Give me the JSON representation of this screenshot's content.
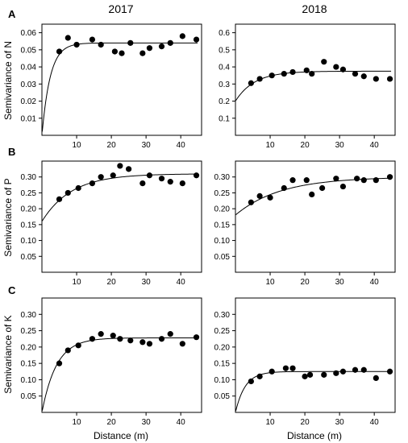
{
  "figure": {
    "column_titles": [
      "2017",
      "2018"
    ],
    "panel_letters": [
      "A",
      "B",
      "C"
    ],
    "row_ylabels": [
      "Semivariance of N",
      "Semivariance of P",
      "Semivariance of K"
    ],
    "xlabel": "Distance (m)"
  },
  "chart_data": [
    {
      "type": "scatter",
      "panel": "A",
      "year": "2017",
      "nutrient": "N",
      "xlim": [
        0,
        46
      ],
      "ylim": [
        0,
        0.065
      ],
      "xticks": [
        10,
        20,
        30,
        40
      ],
      "yticks": [
        0.01,
        0.02,
        0.03,
        0.04,
        0.05,
        0.06
      ],
      "ytick_labels": [
        "0.01",
        "0.02",
        "0.03",
        "0.04",
        "0.05",
        "0.06"
      ],
      "fit": {
        "nugget": 0.0,
        "sill": 0.054,
        "range": 2.4
      },
      "x": [
        5,
        7.5,
        10,
        14.5,
        17,
        21,
        23,
        25.5,
        29,
        31,
        34.5,
        37,
        40.5,
        44.5
      ],
      "y": [
        0.049,
        0.057,
        0.053,
        0.056,
        0.053,
        0.049,
        0.048,
        0.054,
        0.048,
        0.051,
        0.052,
        0.054,
        0.058,
        0.056
      ]
    },
    {
      "type": "scatter",
      "panel": "A",
      "year": "2018",
      "nutrient": "N",
      "xlim": [
        0,
        46
      ],
      "ylim": [
        0,
        0.65
      ],
      "xticks": [
        10,
        20,
        30,
        40
      ],
      "yticks": [
        0.1,
        0.2,
        0.3,
        0.4,
        0.5,
        0.6
      ],
      "ytick_labels": [
        "0.1",
        "0.2",
        "0.3",
        "0.4",
        "0.5",
        "0.6"
      ],
      "fit": {
        "nugget": 0.2,
        "sill": 0.375,
        "range": 5.5
      },
      "x": [
        4.5,
        7,
        10.5,
        14,
        16.5,
        20.5,
        22,
        25.5,
        29,
        31,
        34.5,
        37,
        40.5,
        44.5
      ],
      "y": [
        0.305,
        0.33,
        0.35,
        0.36,
        0.37,
        0.38,
        0.36,
        0.43,
        0.4,
        0.385,
        0.36,
        0.345,
        0.33,
        0.33
      ]
    },
    {
      "type": "scatter",
      "panel": "B",
      "year": "2017",
      "nutrient": "P",
      "xlim": [
        0,
        46
      ],
      "ylim": [
        0,
        0.35
      ],
      "xticks": [
        10,
        20,
        30,
        40
      ],
      "yticks": [
        0.05,
        0.1,
        0.15,
        0.2,
        0.25,
        0.3
      ],
      "ytick_labels": [
        "0.05",
        "0.10",
        "0.15",
        "0.20",
        "0.25",
        "0.30"
      ],
      "fit": {
        "nugget": 0.16,
        "sill": 0.31,
        "range": 8.5
      },
      "x": [
        5,
        7.5,
        10.5,
        14.5,
        17,
        20.5,
        22.5,
        25,
        29,
        31,
        34.5,
        37,
        40.5,
        44.5
      ],
      "y": [
        0.23,
        0.25,
        0.265,
        0.28,
        0.3,
        0.305,
        0.335,
        0.325,
        0.28,
        0.305,
        0.295,
        0.285,
        0.28,
        0.305
      ]
    },
    {
      "type": "scatter",
      "panel": "B",
      "year": "2018",
      "nutrient": "P",
      "xlim": [
        0,
        46
      ],
      "ylim": [
        0,
        0.35
      ],
      "xticks": [
        10,
        20,
        30,
        40
      ],
      "yticks": [
        0.05,
        0.1,
        0.15,
        0.2,
        0.25,
        0.3
      ],
      "ytick_labels": [
        "0.05",
        "0.10",
        "0.15",
        "0.20",
        "0.25",
        "0.30"
      ],
      "fit": {
        "nugget": 0.18,
        "sill": 0.3,
        "range": 13
      },
      "x": [
        4.5,
        7,
        10,
        14,
        16.5,
        20.5,
        22,
        25,
        29,
        31,
        35,
        37,
        40.5,
        44.5
      ],
      "y": [
        0.22,
        0.24,
        0.235,
        0.265,
        0.29,
        0.29,
        0.245,
        0.265,
        0.295,
        0.27,
        0.295,
        0.29,
        0.29,
        0.3
      ]
    },
    {
      "type": "scatter",
      "panel": "C",
      "year": "2017",
      "nutrient": "K",
      "xlim": [
        0,
        46
      ],
      "ylim": [
        0,
        0.35
      ],
      "xticks": [
        10,
        20,
        30,
        40
      ],
      "yticks": [
        0.05,
        0.1,
        0.15,
        0.2,
        0.25,
        0.3
      ],
      "ytick_labels": [
        "0.05",
        "0.10",
        "0.15",
        "0.20",
        "0.25",
        "0.30"
      ],
      "fit": {
        "nugget": 0.0,
        "sill": 0.228,
        "range": 4.2
      },
      "x": [
        5,
        7.5,
        10.5,
        14.5,
        17,
        20.5,
        22.5,
        25.5,
        29,
        31,
        34.5,
        37,
        40.5,
        44.5
      ],
      "y": [
        0.15,
        0.19,
        0.205,
        0.225,
        0.24,
        0.235,
        0.225,
        0.22,
        0.215,
        0.21,
        0.225,
        0.24,
        0.21,
        0.23
      ]
    },
    {
      "type": "scatter",
      "panel": "C",
      "year": "2018",
      "nutrient": "K",
      "xlim": [
        0,
        46
      ],
      "ylim": [
        0,
        0.35
      ],
      "xticks": [
        10,
        20,
        30,
        40
      ],
      "yticks": [
        0.05,
        0.1,
        0.15,
        0.2,
        0.25,
        0.3
      ],
      "ytick_labels": [
        "0.05",
        "0.10",
        "0.15",
        "0.20",
        "0.25",
        "0.30"
      ],
      "fit": {
        "nugget": 0.0,
        "sill": 0.125,
        "range": 2.8
      },
      "x": [
        4.5,
        7,
        10.5,
        14.5,
        16.5,
        20,
        21.5,
        25.5,
        29,
        31,
        34.5,
        37,
        40.5,
        44.5
      ],
      "y": [
        0.095,
        0.11,
        0.125,
        0.135,
        0.135,
        0.11,
        0.115,
        0.115,
        0.12,
        0.125,
        0.13,
        0.13,
        0.105,
        0.125
      ]
    }
  ]
}
